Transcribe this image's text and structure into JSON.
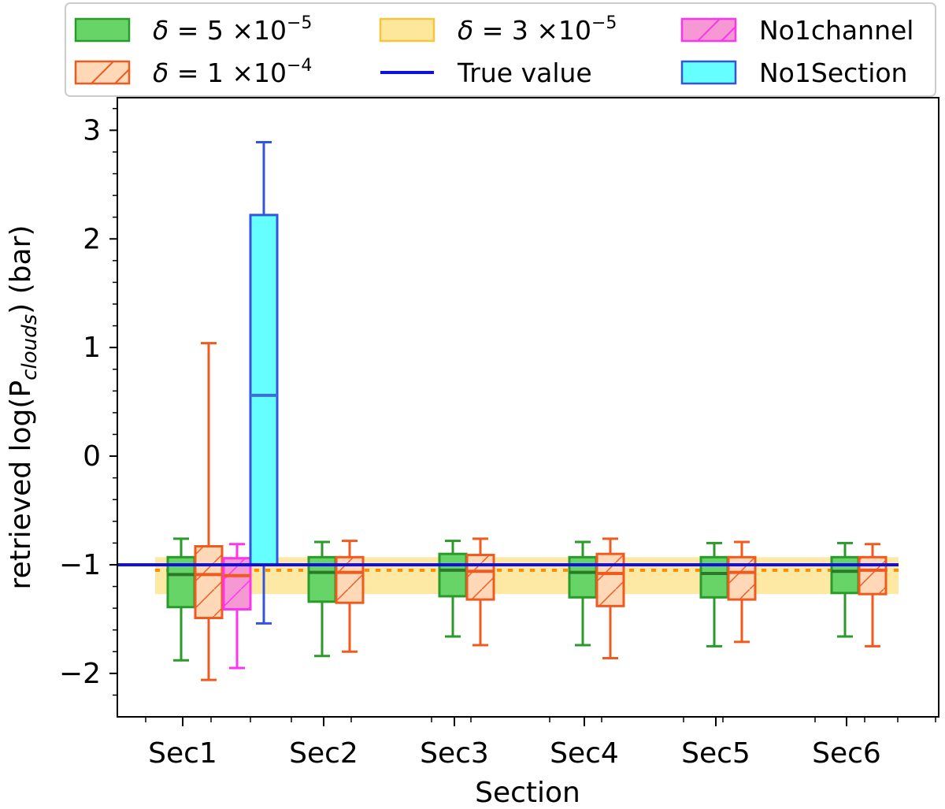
{
  "chart_data": {
    "type": "boxplot",
    "xlabel": "Section",
    "ylabel_main": "retrieved log(P",
    "ylabel_sub": "clouds",
    "ylabel_tail": ") (bar)",
    "categories": [
      "Sec1",
      "Sec2",
      "Sec3",
      "Sec4",
      "Sec5",
      "Sec6"
    ],
    "ylim": [
      -2.4,
      3.3
    ],
    "yticks": [
      3,
      2,
      1,
      0,
      -1,
      -2
    ],
    "ytick_labels": [
      "3",
      "2",
      "1",
      "0",
      "−1",
      "−2"
    ],
    "true_value": -1.0,
    "band": {
      "low": -1.27,
      "high": -0.93,
      "median": -1.05
    },
    "series": [
      {
        "name": "delta_5e-5",
        "fill": "#66d466",
        "edge": "#2a9a2a",
        "hatched": false,
        "boxes": [
          {
            "section": "Sec1",
            "whislo": -1.88,
            "q1": -1.39,
            "med": -1.09,
            "q3": -0.93,
            "whishi": -0.76
          },
          {
            "section": "Sec2",
            "whislo": -1.84,
            "q1": -1.34,
            "med": -1.07,
            "q3": -0.93,
            "whishi": -0.79
          },
          {
            "section": "Sec3",
            "whislo": -1.66,
            "q1": -1.29,
            "med": -1.05,
            "q3": -0.9,
            "whishi": -0.78
          },
          {
            "section": "Sec4",
            "whislo": -1.74,
            "q1": -1.3,
            "med": -1.07,
            "q3": -0.93,
            "whishi": -0.79
          },
          {
            "section": "Sec5",
            "whislo": -1.75,
            "q1": -1.3,
            "med": -1.08,
            "q3": -0.93,
            "whishi": -0.8
          },
          {
            "section": "Sec6",
            "whislo": -1.66,
            "q1": -1.26,
            "med": -1.06,
            "q3": -0.93,
            "whishi": -0.8
          }
        ]
      },
      {
        "name": "delta_1e-4",
        "fill": "#ffd8b8",
        "edge": "#f05a1e",
        "hatched": true,
        "boxes": [
          {
            "section": "Sec1",
            "whislo": -2.06,
            "q1": -1.49,
            "med": -1.09,
            "q3": -0.83,
            "whishi": 1.04
          },
          {
            "section": "Sec2",
            "whislo": -1.8,
            "q1": -1.35,
            "med": -1.07,
            "q3": -0.93,
            "whishi": -0.78
          },
          {
            "section": "Sec3",
            "whislo": -1.74,
            "q1": -1.32,
            "med": -1.06,
            "q3": -0.91,
            "whishi": -0.76
          },
          {
            "section": "Sec4",
            "whislo": -1.86,
            "q1": -1.38,
            "med": -1.08,
            "q3": -0.9,
            "whishi": -0.76
          },
          {
            "section": "Sec5",
            "whislo": -1.71,
            "q1": -1.32,
            "med": -1.07,
            "q3": -0.93,
            "whishi": -0.79
          },
          {
            "section": "Sec6",
            "whislo": -1.75,
            "q1": -1.27,
            "med": -1.05,
            "q3": -0.93,
            "whishi": -0.81
          }
        ]
      },
      {
        "name": "No1channel",
        "fill": "#f598d4",
        "edge": "#ff33ee",
        "hatched": true,
        "boxes": [
          {
            "section": "Sec1",
            "whislo": -1.95,
            "q1": -1.41,
            "med": -1.1,
            "q3": -0.94,
            "whishi": -0.81
          }
        ]
      },
      {
        "name": "No1Section",
        "fill": "#66ffff",
        "edge": "#3355dd",
        "hatched": false,
        "boxes": [
          {
            "section": "Sec1",
            "whislo": -1.54,
            "q1": -1.0,
            "med": 0.56,
            "q3": 2.22,
            "whishi": 2.89
          }
        ]
      }
    ],
    "legend": {
      "items": [
        {
          "key": "d5",
          "prefix": "δ",
          "text": " = 5 ×10",
          "sup": "−5",
          "swatch_fill": "#66d466",
          "swatch_edge": "#2a9a2a",
          "hatch": false
        },
        {
          "key": "d1",
          "prefix": "δ",
          "text": " = 1 ×10",
          "sup": "−4",
          "swatch_fill": "#ffd8b8",
          "swatch_edge": "#f05a1e",
          "hatch": true
        },
        {
          "key": "d3",
          "prefix": "δ",
          "text": " = 3 ×10",
          "sup": "−5",
          "swatch_fill": "#fde79a",
          "swatch_edge": "#f5c542",
          "hatch": false
        },
        {
          "key": "true",
          "text": "True value",
          "line_color": "#1010e0"
        },
        {
          "key": "no1ch",
          "text": "No1channel",
          "swatch_fill": "#f598d4",
          "swatch_edge": "#ff33ee",
          "hatch": true
        },
        {
          "key": "no1sec",
          "text": "No1Section",
          "swatch_fill": "#66ffff",
          "swatch_edge": "#3355dd",
          "hatch": false
        }
      ]
    },
    "colors": {
      "band_fill": "#fde79a",
      "band_median": "#ff8c00",
      "true_line": "#1010e0"
    }
  }
}
